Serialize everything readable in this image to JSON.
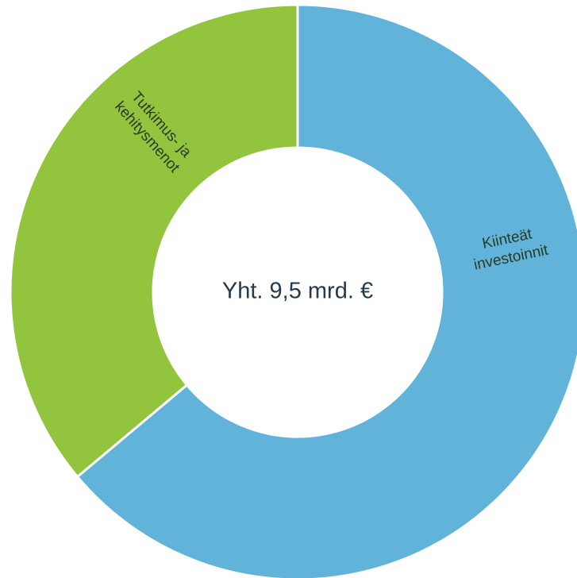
{
  "chart_data": {
    "type": "pie",
    "hole": true,
    "center_label": "Yht.  9,5 mrd. €",
    "slices": [
      {
        "name": "Kiinteät investoinnit",
        "label_lines": [
          "Kiinteät",
          "investoinnit"
        ],
        "value": 0.639,
        "color": "#62b3d9"
      },
      {
        "name": "Tutkimus- ja kehitysmenot",
        "label_lines": [
          "Tutkimus- ja",
          "kehitysmenot"
        ],
        "value": 0.361,
        "color": "#93c43e"
      }
    ]
  }
}
